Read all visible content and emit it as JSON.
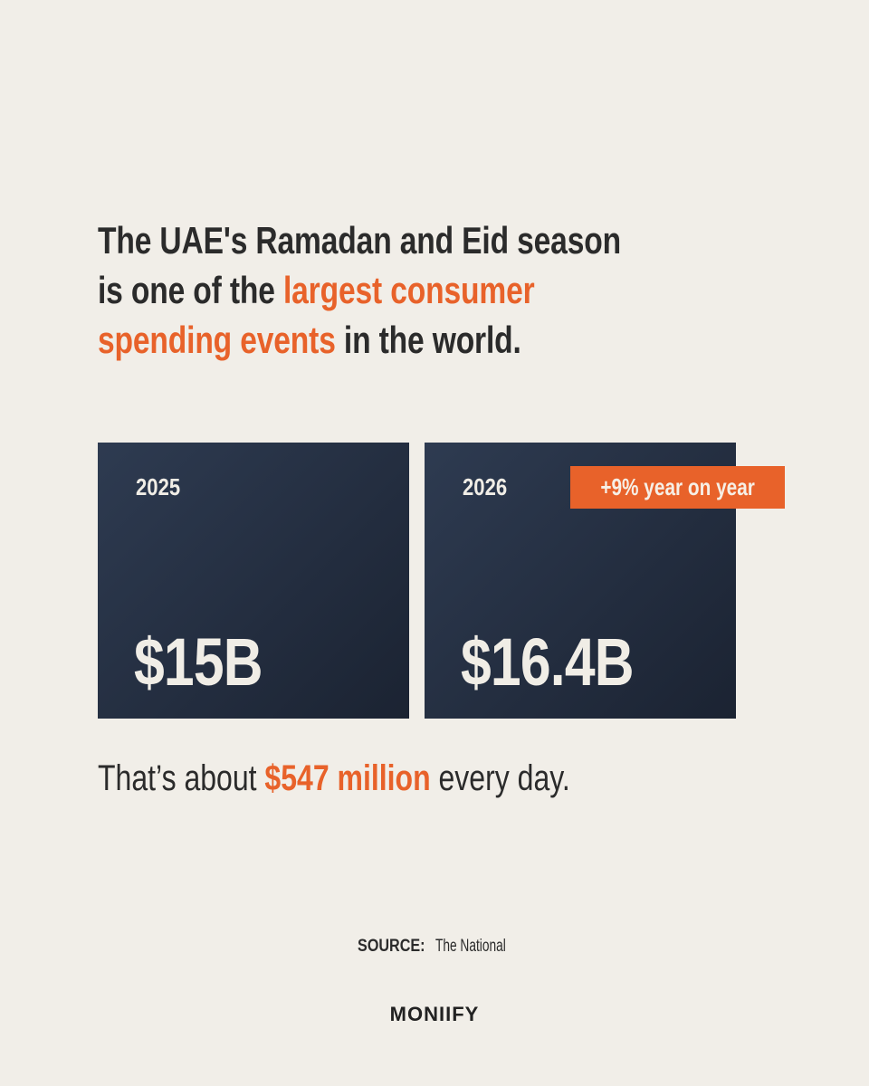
{
  "headline": {
    "lines": [
      [
        {
          "text": "The UAE's Ramadan and Eid season",
          "emphasis": false
        }
      ],
      [
        {
          "text": "is one of the ",
          "emphasis": false
        },
        {
          "text": "largest consumer",
          "emphasis": true
        }
      ],
      [
        {
          "text": "spending events",
          "emphasis": true
        },
        {
          "text": " in the world.",
          "emphasis": false
        }
      ]
    ]
  },
  "cards": [
    {
      "year": "2025",
      "amount": "$15B"
    },
    {
      "year": "2026",
      "amount": "$16.4B",
      "badge": "+9% year on year"
    }
  ],
  "summary": {
    "segments": [
      {
        "text": "That’s about ",
        "emphasis": false
      },
      {
        "text": "$547 million",
        "emphasis": true
      },
      {
        "text": " every day.",
        "emphasis": false
      }
    ]
  },
  "source": {
    "label": "SOURCE:",
    "name": "The National"
  },
  "brand": "MONIIFY"
}
